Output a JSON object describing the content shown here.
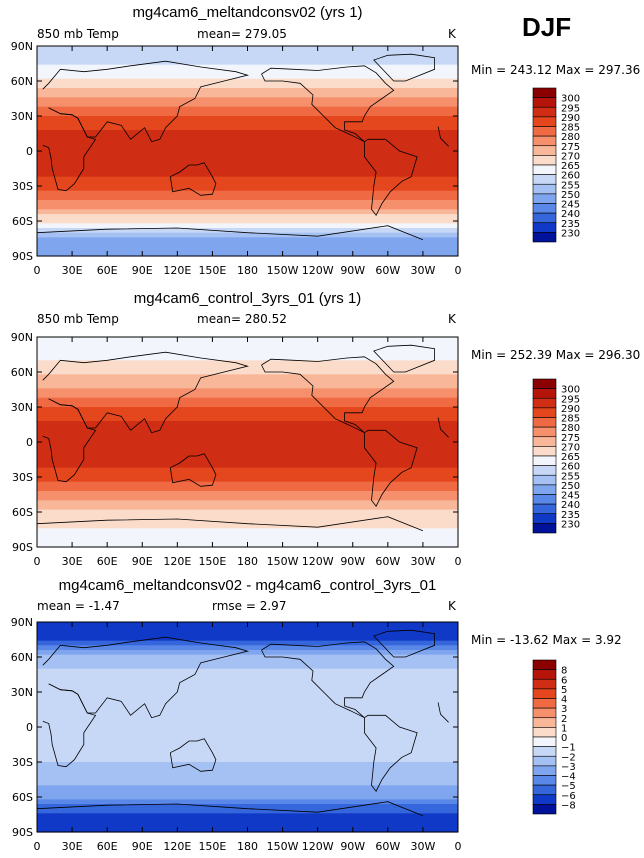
{
  "season": "DJF",
  "chart_data": [
    {
      "type": "heatmap",
      "title": "mg4cam6_meltandconsv02 (yrs 1)",
      "variable": "850 mb Temp",
      "units": "K",
      "mean_label": "mean=",
      "mean": "279.05",
      "min_label": "Min =",
      "min": "243.12",
      "max_label": "Max =",
      "max": "297.36",
      "x_ticks": [
        "0",
        "30E",
        "60E",
        "90E",
        "120E",
        "150E",
        "180",
        "150W",
        "120W",
        "90W",
        "60W",
        "30W",
        "0"
      ],
      "y_ticks": [
        "90N",
        "60N",
        "30N",
        "0",
        "30S",
        "60S",
        "90S"
      ],
      "ylim": [
        -90,
        90
      ],
      "levels": [
        "300",
        "295",
        "290",
        "285",
        "280",
        "275",
        "270",
        "265",
        "260",
        "255",
        "250",
        "245",
        "240",
        "235",
        "230"
      ],
      "colors": [
        "#8b0000",
        "#b4140a",
        "#cf2d14",
        "#e4461d",
        "#ef6a43",
        "#f58f6c",
        "#f9b79a",
        "#fbdccb",
        "#f2f5fc",
        "#c7d8f7",
        "#a5c1f3",
        "#7fa5ee",
        "#5a88e8",
        "#3566dc",
        "#1039c8",
        "#00129a"
      ],
      "profile": [
        {
          "lat": 90,
          "v": 256
        },
        {
          "lat": 75,
          "v": 259
        },
        {
          "lat": 60,
          "v": 266
        },
        {
          "lat": 45,
          "v": 275
        },
        {
          "lat": 30,
          "v": 285
        },
        {
          "lat": 15,
          "v": 291
        },
        {
          "lat": 0,
          "v": 292
        },
        {
          "lat": -15,
          "v": 292
        },
        {
          "lat": -30,
          "v": 287
        },
        {
          "lat": -45,
          "v": 278
        },
        {
          "lat": -60,
          "v": 266
        },
        {
          "lat": -75,
          "v": 250
        },
        {
          "lat": -90,
          "v": 245
        }
      ]
    },
    {
      "type": "heatmap",
      "title": "mg4cam6_control_3yrs_01 (yrs 1)",
      "variable": "850 mb Temp",
      "units": "K",
      "mean_label": "mean=",
      "mean": "280.52",
      "min_label": "Min =",
      "min": "252.39",
      "max_label": "Max =",
      "max": "296.30",
      "x_ticks": [
        "0",
        "30E",
        "60E",
        "90E",
        "120E",
        "150E",
        "180",
        "150W",
        "120W",
        "90W",
        "60W",
        "30W",
        "0"
      ],
      "y_ticks": [
        "90N",
        "60N",
        "30N",
        "0",
        "30S",
        "60S",
        "90S"
      ],
      "ylim": [
        -90,
        90
      ],
      "levels": [
        "300",
        "295",
        "290",
        "285",
        "280",
        "275",
        "270",
        "265",
        "260",
        "255",
        "250",
        "245",
        "240",
        "235",
        "230"
      ],
      "colors": [
        "#8b0000",
        "#b4140a",
        "#cf2d14",
        "#e4461d",
        "#ef6a43",
        "#f58f6c",
        "#f9b79a",
        "#fbdccb",
        "#f2f5fc",
        "#c7d8f7",
        "#a5c1f3",
        "#7fa5ee",
        "#5a88e8",
        "#3566dc",
        "#1039c8",
        "#00129a"
      ],
      "profile": [
        {
          "lat": 90,
          "v": 263
        },
        {
          "lat": 75,
          "v": 264
        },
        {
          "lat": 60,
          "v": 268
        },
        {
          "lat": 45,
          "v": 276
        },
        {
          "lat": 30,
          "v": 285
        },
        {
          "lat": 15,
          "v": 291
        },
        {
          "lat": 0,
          "v": 292
        },
        {
          "lat": -15,
          "v": 292
        },
        {
          "lat": -30,
          "v": 287
        },
        {
          "lat": -45,
          "v": 279
        },
        {
          "lat": -60,
          "v": 269
        },
        {
          "lat": -75,
          "v": 264
        },
        {
          "lat": -90,
          "v": 263
        }
      ]
    },
    {
      "type": "heatmap",
      "title": "mg4cam6_meltandconsv02 - mg4cam6_control_3yrs_01",
      "units": "K",
      "mean_label": "mean =",
      "mean": "-1.47",
      "rmse_label": "rmse =",
      "rmse": "2.97",
      "min_label": "Min =",
      "min": "-13.62",
      "max_label": "Max =",
      "max": "3.92",
      "x_ticks": [
        "0",
        "30E",
        "60E",
        "90E",
        "120E",
        "150E",
        "180",
        "150W",
        "120W",
        "90W",
        "60W",
        "30W",
        "0"
      ],
      "y_ticks": [
        "90N",
        "60N",
        "30N",
        "0",
        "30S",
        "60S",
        "90S"
      ],
      "ylim": [
        -90,
        90
      ],
      "levels": [
        "8",
        "6",
        "5",
        "4",
        "3",
        "2",
        "1",
        "0",
        "−1",
        "−2",
        "−3",
        "−4",
        "−5",
        "−6",
        "−8"
      ],
      "colors": [
        "#8b0000",
        "#b4140a",
        "#cf2d14",
        "#e4461d",
        "#ef6a43",
        "#f58f6c",
        "#f9b79a",
        "#fbdccb",
        "#f2f5fc",
        "#c7d8f7",
        "#a5c1f3",
        "#7fa5ee",
        "#5a88e8",
        "#3566dc",
        "#1039c8",
        "#00129a"
      ],
      "profile": [
        {
          "lat": 90,
          "v": -8
        },
        {
          "lat": 75,
          "v": -6.5
        },
        {
          "lat": 60,
          "v": -3
        },
        {
          "lat": 45,
          "v": -1.5
        },
        {
          "lat": 30,
          "v": -1
        },
        {
          "lat": 15,
          "v": -1.5
        },
        {
          "lat": 0,
          "v": -1.5
        },
        {
          "lat": -15,
          "v": -1.5
        },
        {
          "lat": -30,
          "v": -2
        },
        {
          "lat": -45,
          "v": -2.5
        },
        {
          "lat": -60,
          "v": -4
        },
        {
          "lat": -75,
          "v": -6
        },
        {
          "lat": -90,
          "v": -7
        }
      ]
    }
  ]
}
